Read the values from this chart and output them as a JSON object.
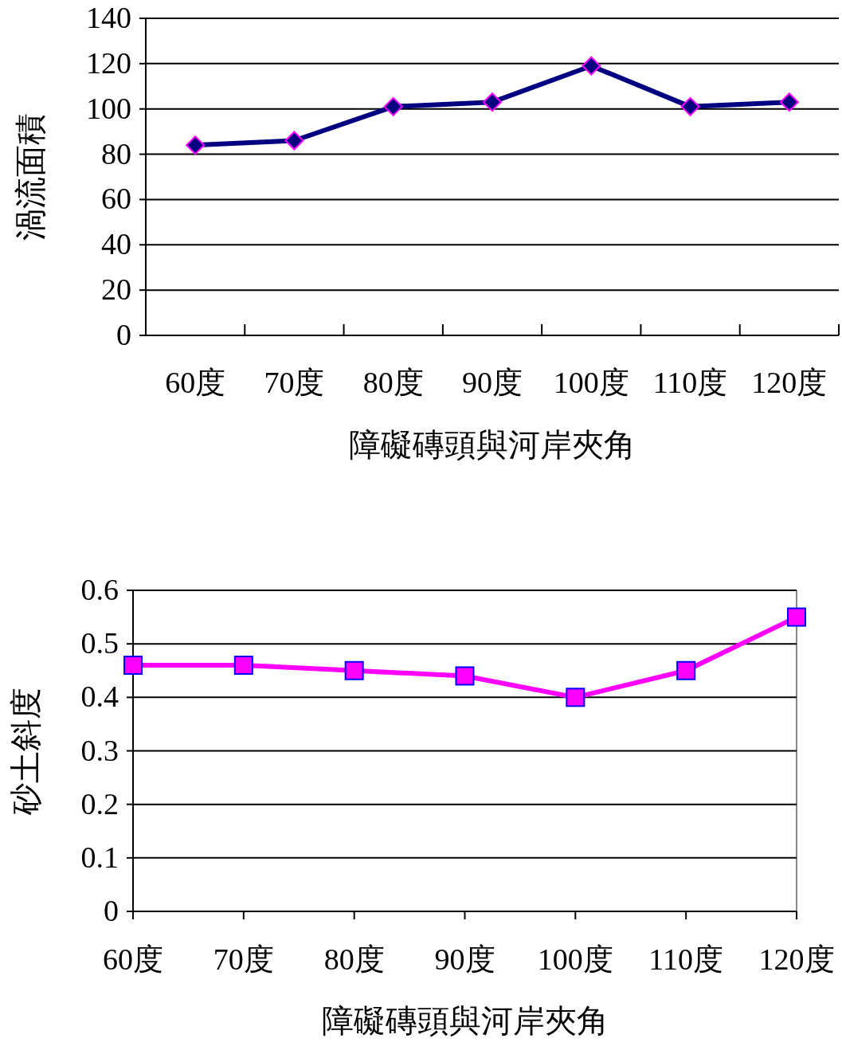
{
  "chart_data": [
    {
      "type": "line",
      "ylabel": "渦流面積",
      "xlabel": "障礙磚頭與河岸夾角",
      "categories": [
        "60度",
        "70度",
        "80度",
        "90度",
        "100度",
        "110度",
        "120度"
      ],
      "series": [
        {
          "color": "#000080",
          "values": [
            84,
            86,
            101,
            103,
            119,
            101,
            103
          ]
        }
      ],
      "ylim": [
        0,
        140
      ],
      "yticks": [
        0,
        20,
        40,
        60,
        80,
        100,
        120,
        140
      ],
      "grid": "y",
      "marker": "diamond"
    },
    {
      "type": "line",
      "ylabel": "砂土斜度",
      "xlabel": "障礙磚頭與河岸夾角",
      "categories": [
        "60度",
        "70度",
        "80度",
        "90度",
        "100度",
        "110度",
        "120度"
      ],
      "series": [
        {
          "color": "#ff00ff",
          "values": [
            0.46,
            0.46,
            0.45,
            0.44,
            0.4,
            0.45,
            0.55
          ]
        }
      ],
      "ylim": [
        0,
        0.6
      ],
      "yticks": [
        0,
        0.1,
        0.2,
        0.3,
        0.4,
        0.5,
        0.6
      ],
      "grid": "y",
      "marker": "square"
    }
  ]
}
